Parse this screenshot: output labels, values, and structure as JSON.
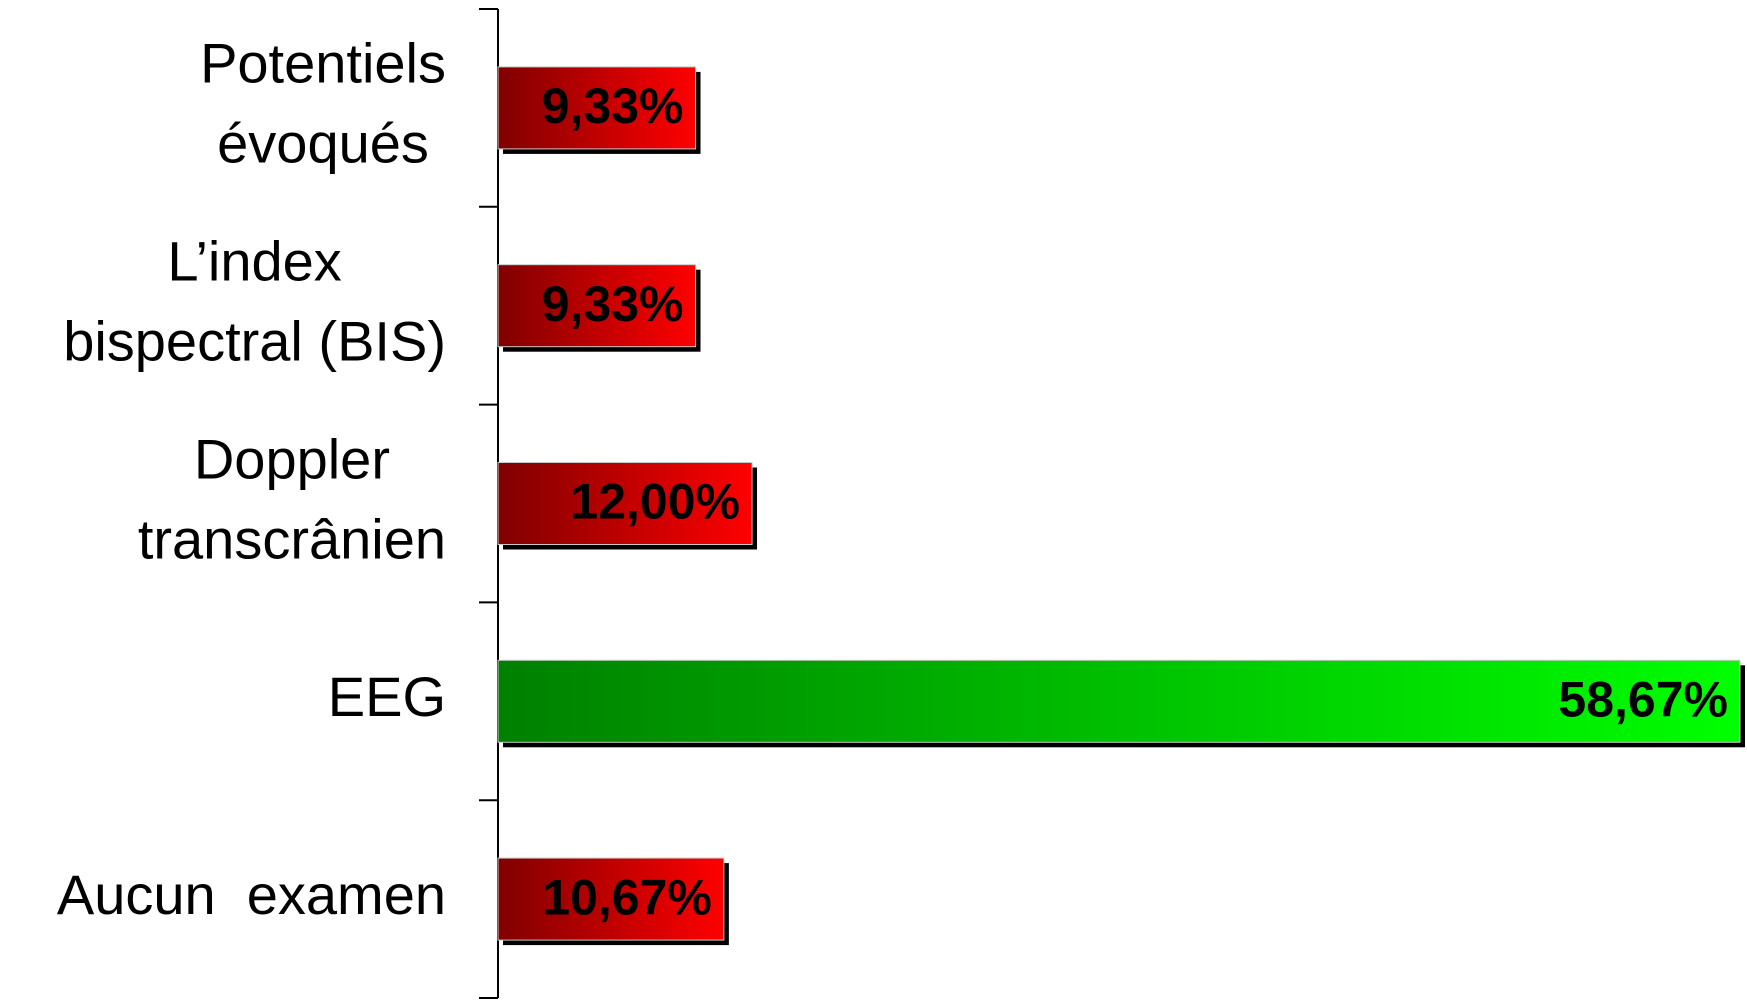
{
  "chart_data": {
    "type": "barh",
    "categories": [
      [
        "Potentiels",
        "évoqués"
      ],
      [
        "L’index",
        "bispectral (BIS)"
      ],
      [
        "Doppler",
        "transcrânien"
      ],
      [
        "EEG"
      ],
      [
        "Aucun  examen"
      ]
    ],
    "values": [
      9.33,
      9.33,
      12.0,
      58.67,
      10.67
    ],
    "value_labels": [
      "9,33%",
      "9,33%",
      "12,00%",
      "58,67%",
      "10,67%"
    ],
    "colors": [
      "#ff0000",
      "#ff0000",
      "#ff0000",
      "#00ff00",
      "#ff0000"
    ]
  }
}
